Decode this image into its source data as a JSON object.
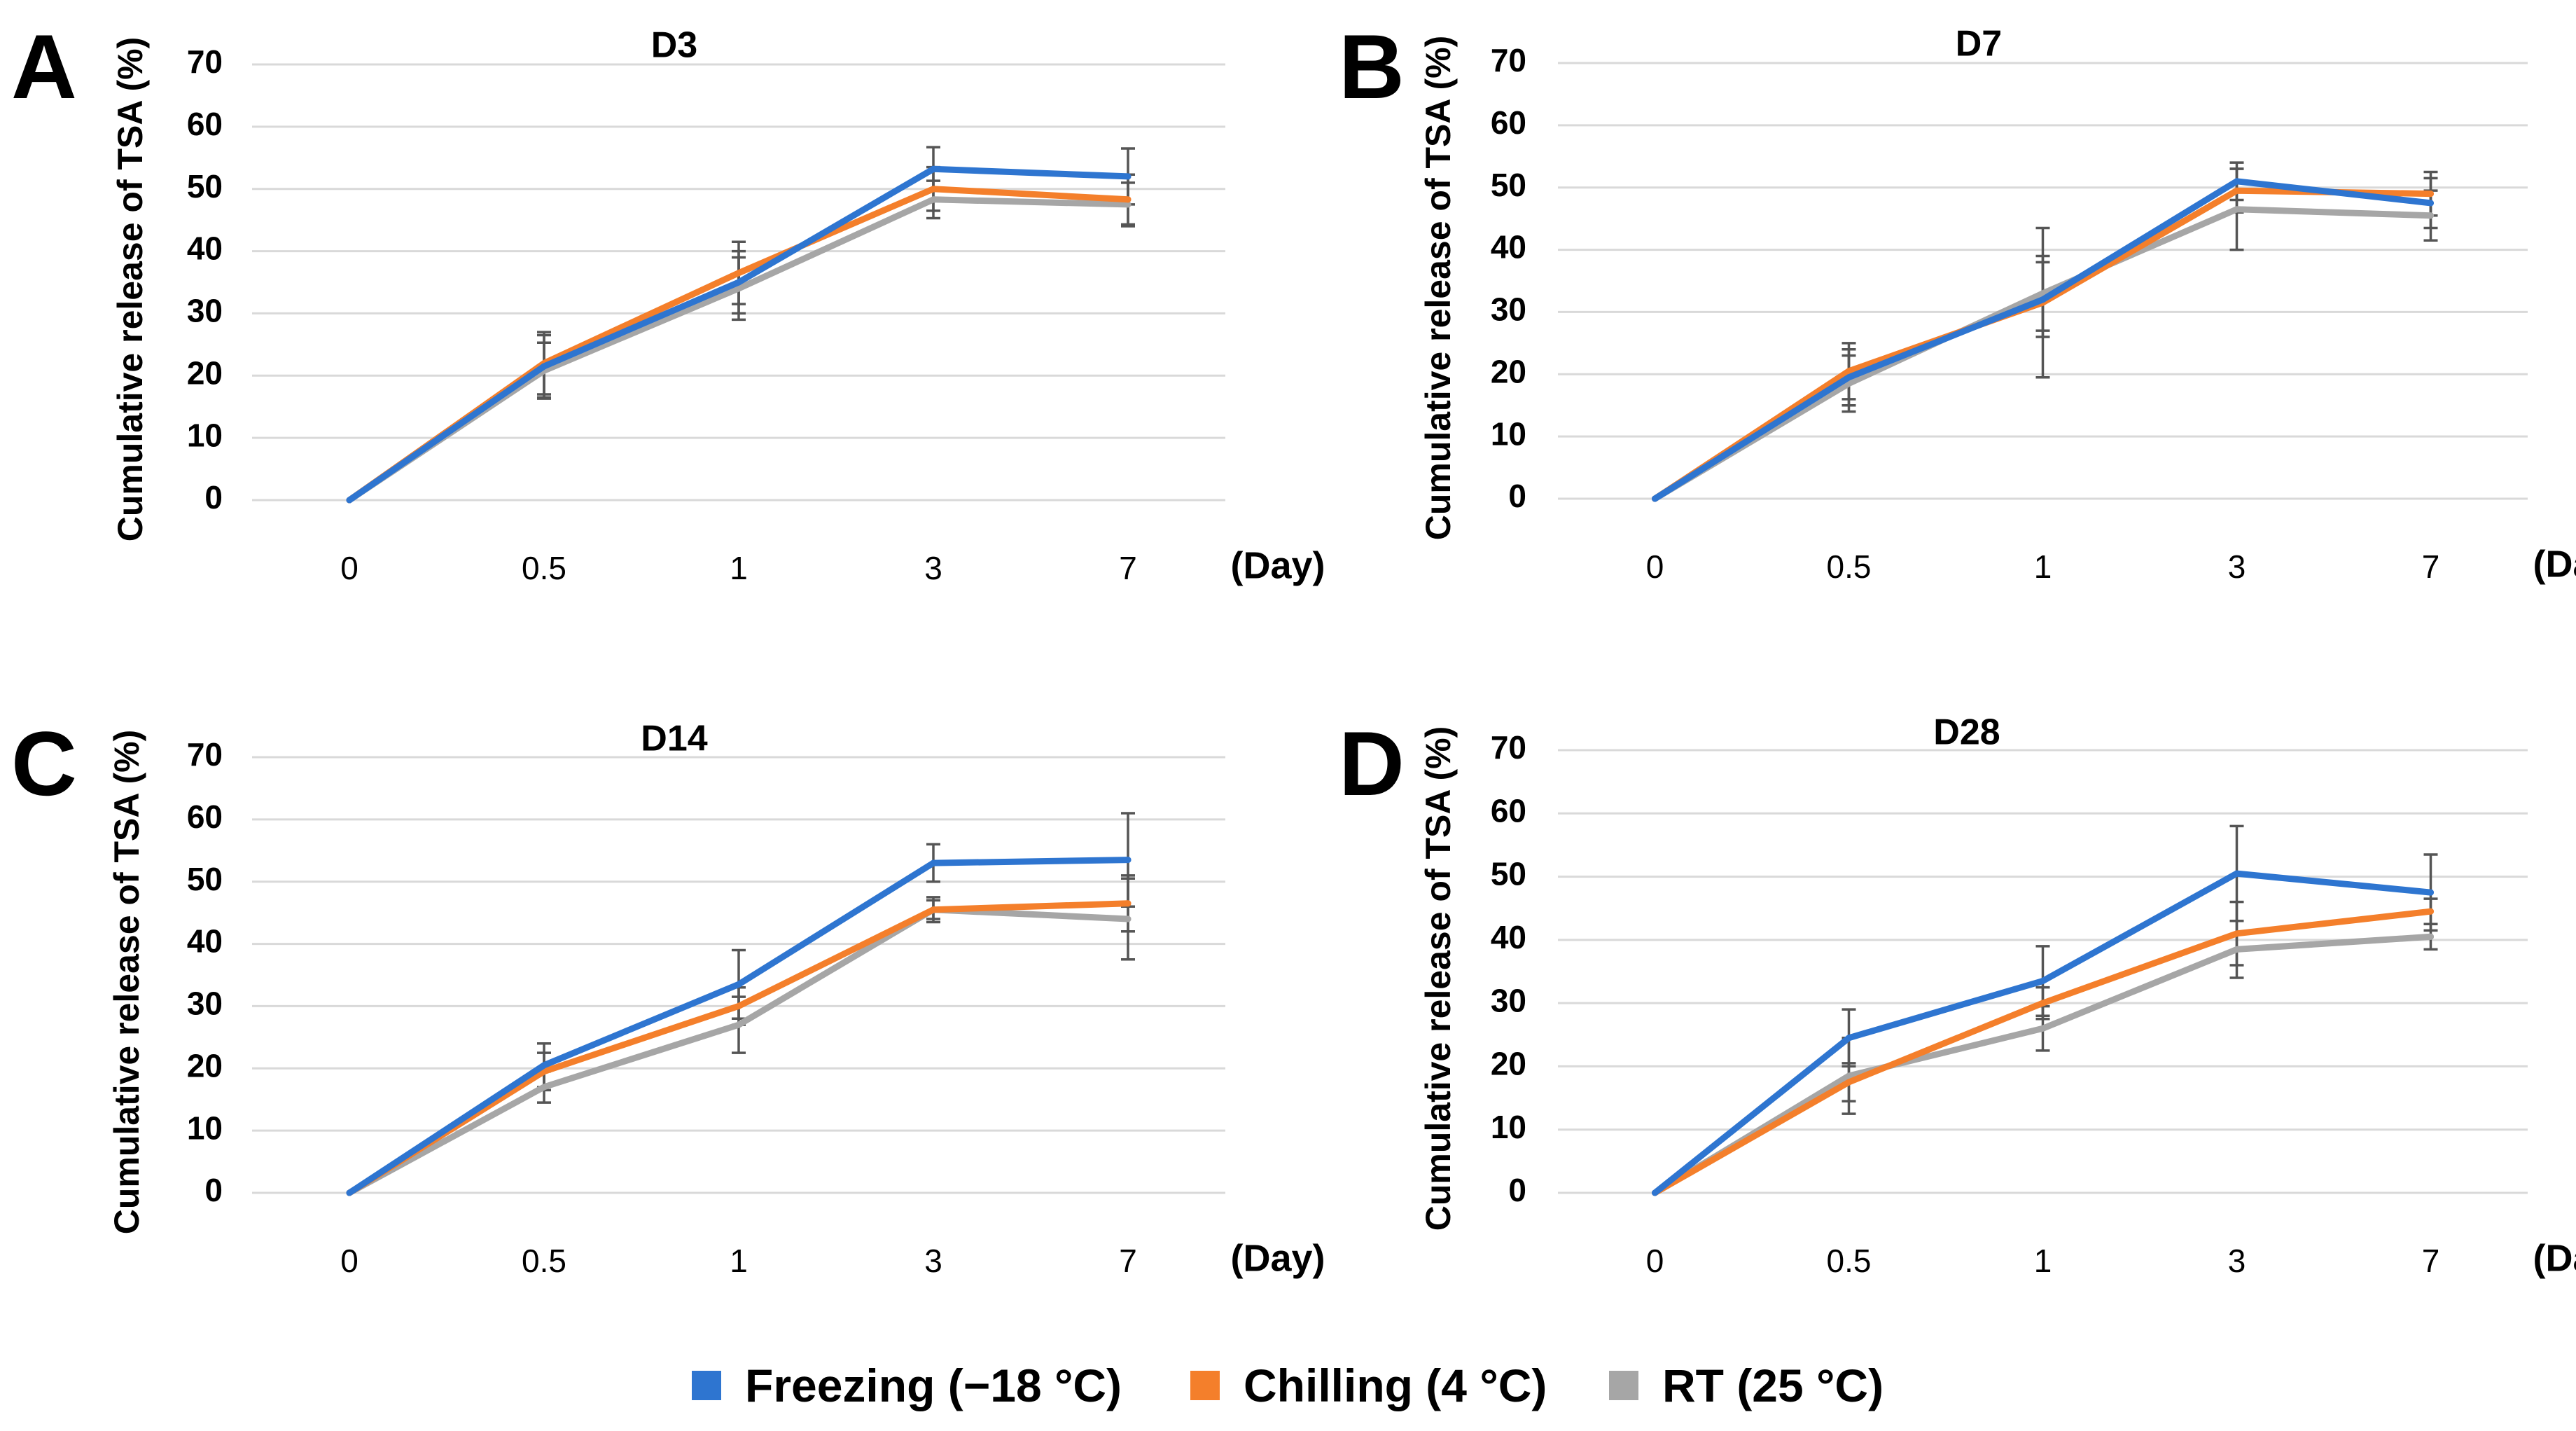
{
  "legend": [
    {
      "label": "Freezing (−18 °C)",
      "color": "#2e75d0"
    },
    {
      "label": "Chilling (4 °C)",
      "color": "#f47f2b"
    },
    {
      "label": "RT (25 °C)",
      "color": "#a6a6a6"
    }
  ],
  "chart_data": [
    {
      "panel": "A",
      "type": "line",
      "title": "D3",
      "xlabel": "(Day)",
      "ylabel": "Cumulative release of TSA (%)",
      "categories": [
        "0",
        "0.5",
        "1",
        "3",
        "7"
      ],
      "ylim": [
        0,
        70
      ],
      "yticks": [
        0,
        10,
        20,
        30,
        40,
        50,
        60,
        70
      ],
      "grid": true,
      "series": [
        {
          "name": "Freezing (−18 °C)",
          "color": "#2e75d0",
          "values": [
            0,
            21.5,
            35,
            53.2,
            52
          ],
          "errors": [
            0,
            5,
            5,
            3.5,
            4.5
          ]
        },
        {
          "name": "Chilling (4 °C)",
          "color": "#f47f2b",
          "values": [
            0,
            22,
            36.5,
            50,
            48.3
          ],
          "errors": [
            0,
            5,
            5,
            3.5,
            4
          ]
        },
        {
          "name": "RT (25 °C)",
          "color": "#a6a6a6",
          "values": [
            0,
            20.8,
            34,
            48.3,
            47.5
          ],
          "errors": [
            0,
            4.5,
            5,
            3,
            3.5
          ]
        }
      ]
    },
    {
      "panel": "B",
      "type": "line",
      "title": "D7",
      "xlabel": "(Day)",
      "ylabel": "Cumulative release of TSA (%)",
      "categories": [
        "0",
        "0.5",
        "1",
        "3",
        "7"
      ],
      "ylim": [
        0,
        70
      ],
      "yticks": [
        0,
        10,
        20,
        30,
        40,
        50,
        60,
        70
      ],
      "grid": true,
      "series": [
        {
          "name": "Freezing (−18 °C)",
          "color": "#2e75d0",
          "values": [
            0,
            19.5,
            32,
            51,
            47.5
          ],
          "errors": [
            0,
            4.5,
            6,
            3,
            4
          ]
        },
        {
          "name": "Chilling (4 °C)",
          "color": "#f47f2b",
          "values": [
            0,
            20.5,
            31.5,
            49.5,
            49
          ],
          "errors": [
            0,
            4.5,
            12,
            3.5,
            3.5
          ]
        },
        {
          "name": "RT (25 °C)",
          "color": "#a6a6a6",
          "values": [
            0,
            18.5,
            33,
            46.5,
            45.5
          ],
          "errors": [
            0,
            4.5,
            6,
            6.5,
            4
          ]
        }
      ]
    },
    {
      "panel": "C",
      "type": "line",
      "title": "D14",
      "xlabel": "(Day)",
      "ylabel": "Cumulative release of TSA (%)",
      "categories": [
        "0",
        "0.5",
        "1",
        "3",
        "7"
      ],
      "ylim": [
        0,
        70
      ],
      "yticks": [
        0,
        10,
        20,
        30,
        40,
        50,
        60,
        70
      ],
      "grid": true,
      "series": [
        {
          "name": "Freezing (−18 °C)",
          "color": "#2e75d0",
          "values": [
            0,
            20.5,
            33.5,
            53,
            53.5
          ],
          "errors": [
            0,
            3.5,
            5.5,
            3,
            7.5
          ]
        },
        {
          "name": "Chilling (4 °C)",
          "color": "#f47f2b",
          "values": [
            0,
            19.5,
            30,
            45.5,
            46.5
          ],
          "errors": [
            0,
            3,
            3,
            1.5,
            4.5
          ]
        },
        {
          "name": "RT (25 °C)",
          "color": "#a6a6a6",
          "values": [
            0,
            17,
            27,
            45.5,
            44
          ],
          "errors": [
            0,
            2.5,
            4.5,
            2,
            6.5
          ]
        }
      ]
    },
    {
      "panel": "D",
      "type": "line",
      "title": "D28",
      "xlabel": "(Day)",
      "ylabel": "Cumulative release of TSA (%)",
      "categories": [
        "0",
        "0.5",
        "1",
        "3",
        "7"
      ],
      "ylim": [
        0,
        70
      ],
      "yticks": [
        0,
        10,
        20,
        30,
        40,
        50,
        60,
        70
      ],
      "grid": true,
      "series": [
        {
          "name": "Freezing (−18 °C)",
          "color": "#2e75d0",
          "values": [
            0,
            24.5,
            33.5,
            50.5,
            47.5
          ],
          "errors": [
            0,
            4.5,
            5.5,
            7.5,
            6
          ]
        },
        {
          "name": "Chilling (4 °C)",
          "color": "#f47f2b",
          "values": [
            0,
            17.5,
            30,
            41,
            44.5
          ],
          "errors": [
            0,
            3,
            2.5,
            5,
            2
          ]
        },
        {
          "name": "RT (25 °C)",
          "color": "#a6a6a6",
          "values": [
            0,
            18.5,
            26,
            38.5,
            40.5
          ],
          "errors": [
            0,
            6,
            3.5,
            4.5,
            2
          ]
        }
      ]
    }
  ]
}
